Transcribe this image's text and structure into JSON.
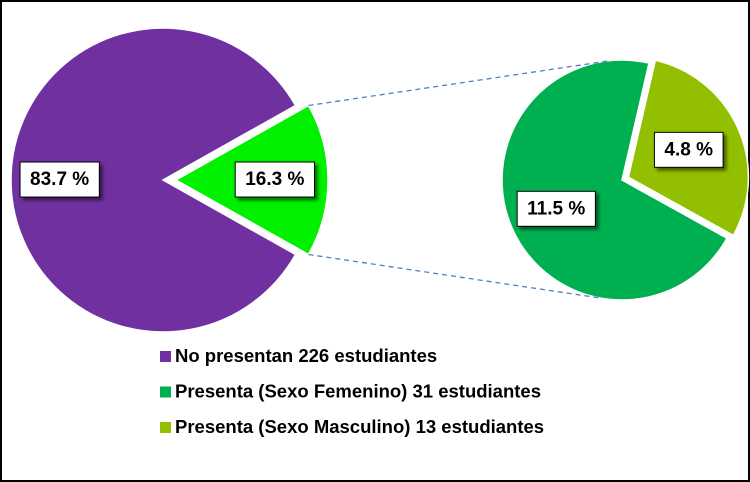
{
  "chart_data": {
    "type": "pie",
    "pies": [
      {
        "values": [
          83.7,
          16.3
        ],
        "value_labels": [
          "83.7 %",
          "16.3 %"
        ],
        "colors": [
          "#7030a0",
          "#00f000"
        ]
      },
      {
        "values": [
          11.5,
          4.8
        ],
        "value_labels": [
          "11.5 %",
          "4.8 %"
        ],
        "colors": [
          "#00b050",
          "#92c000"
        ]
      }
    ],
    "legend": [
      {
        "name": "No presentan 226 estudiantes",
        "color": "#7030a0"
      },
      {
        "name": "Presenta (Sexo Femenino) 31 estudiantes",
        "color": "#00b050"
      },
      {
        "name": "Presenta (Sexo Masculino) 13 estudiantes",
        "color": "#92c000"
      }
    ]
  }
}
